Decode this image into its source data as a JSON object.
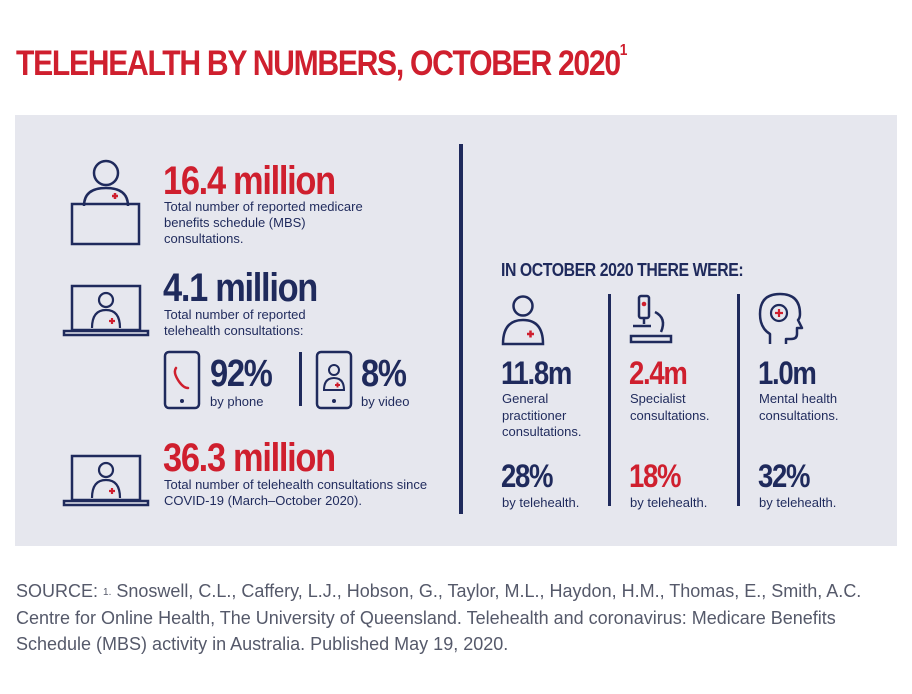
{
  "title": {
    "text": "TELEHEALTH BY NUMBERS, OCTOBER 2020",
    "footnote_mark": "1"
  },
  "stats": [
    {
      "value": "16.4 million",
      "description": "Total number of reported medicare benefits schedule (MBS) consultations.",
      "icon": "doctor-at-desk-icon"
    },
    {
      "value": "4.1 million",
      "description": "Total number of reported telehealth consultations:",
      "icon": "laptop-doctor-icon"
    },
    {
      "value": "36.3 million",
      "description": "Total number of telehealth consultations since COVID-19 (March–October 2020).",
      "icon": "laptop-doctor-icon"
    }
  ],
  "breakdown": [
    {
      "value": "92%",
      "label": "by phone",
      "icon": "phone-icon"
    },
    {
      "value": "8%",
      "label": "by video",
      "icon": "video-call-icon"
    }
  ],
  "october": {
    "heading": "IN OCTOBER 2020 THERE WERE:",
    "items": [
      {
        "value": "11.8m",
        "description": "General practitioner consultations.",
        "percent": "28%",
        "percent_label": "by telehealth.",
        "icon": "doctor-icon",
        "value_color": "#1f2a5c",
        "percent_color": "#1f2a5c"
      },
      {
        "value": "2.4m",
        "description": "Specialist consultations.",
        "percent": "18%",
        "percent_label": "by telehealth.",
        "icon": "microscope-icon",
        "value_color": "#cf1f2e",
        "percent_color": "#cf1f2e"
      },
      {
        "value": "1.0m",
        "description": "Mental health consultations.",
        "percent": "32%",
        "percent_label": "by telehealth.",
        "icon": "mental-health-head-icon",
        "value_color": "#1f2a5c",
        "percent_color": "#1f2a5c"
      }
    ]
  },
  "source": {
    "prefix": "SOURCE: ",
    "footnote_mark": "1.",
    "text": " Snoswell, C.L., Caffery, L.J., Hobson, G., Taylor, M.L., Haydon, H.M., Thomas, E., Smith, A.C. Centre for Online Health, The University of Queensland. Telehealth and coronavirus: Medicare Benefits Schedule (MBS) activity in Australia. Published May 19, 2020."
  },
  "colors": {
    "red": "#cf1f2e",
    "navy": "#1f2a5c",
    "panel": "#e6e7ee"
  }
}
